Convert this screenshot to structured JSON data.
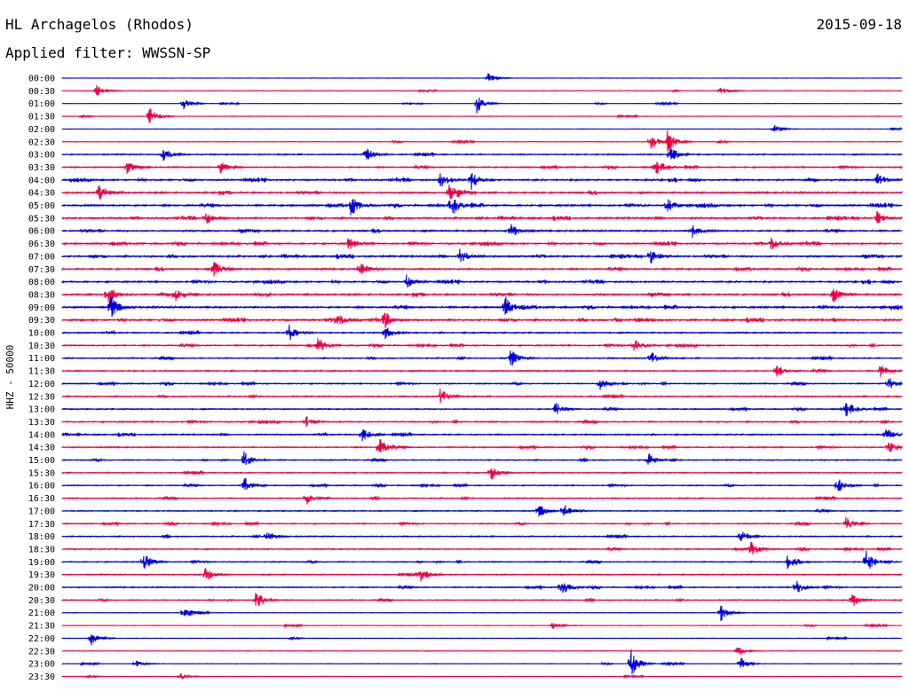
{
  "header": {
    "station": "HL Archagelos (Rhodos)",
    "date": "2015-09-18",
    "filter_label": "Applied filter:",
    "filter_name": "WWSSN-SP"
  },
  "chart_data": {
    "type": "line",
    "title": "HL Archagelos (Rhodos)",
    "ylabel": "HHZ - 50000",
    "row_labels": [
      "00:00",
      "00:30",
      "01:00",
      "01:30",
      "02:00",
      "02:30",
      "03:00",
      "03:30",
      "04:00",
      "04:30",
      "05:00",
      "05:30",
      "06:00",
      "06:30",
      "07:00",
      "07:30",
      "08:00",
      "08:30",
      "09:00",
      "09:30",
      "10:00",
      "10:30",
      "11:00",
      "11:30",
      "12:00",
      "12:30",
      "13:00",
      "13:30",
      "14:00",
      "14:30",
      "15:00",
      "15:30",
      "16:00",
      "16:30",
      "17:00",
      "17:30",
      "18:00",
      "18:30",
      "19:00",
      "19:30",
      "20:00",
      "20:30",
      "21:00",
      "21:30",
      "22:00",
      "22:30",
      "23:00",
      "23:30"
    ],
    "row_colors": [
      "#0000dd",
      "#ee0044"
    ],
    "noise_level": [
      0.12,
      0.18,
      0.12,
      0.15,
      0.15,
      0.2,
      0.5,
      0.55,
      0.7,
      0.75,
      0.8,
      0.75,
      0.7,
      0.7,
      0.75,
      0.7,
      0.7,
      0.75,
      0.8,
      0.8,
      0.55,
      0.55,
      0.5,
      0.5,
      0.5,
      0.5,
      0.5,
      0.55,
      0.55,
      0.5,
      0.45,
      0.45,
      0.45,
      0.45,
      0.45,
      0.45,
      0.45,
      0.45,
      0.45,
      0.45,
      0.5,
      0.4,
      0.2,
      0.2,
      0.2,
      0.2,
      0.2,
      0.15
    ],
    "events": [
      {
        "row": 0,
        "minute": 15.2,
        "amp": 0.7
      },
      {
        "row": 1,
        "minute": 1.2,
        "amp": 0.9
      },
      {
        "row": 1,
        "minute": 23.5,
        "amp": 0.6
      },
      {
        "row": 2,
        "minute": 4.3,
        "amp": 0.9
      },
      {
        "row": 2,
        "minute": 14.8,
        "amp": 1.3
      },
      {
        "row": 3,
        "minute": 3.1,
        "amp": 1.4
      },
      {
        "row": 4,
        "minute": 25.4,
        "amp": 0.7
      },
      {
        "row": 5,
        "minute": 21.0,
        "amp": 1.2
      },
      {
        "row": 5,
        "minute": 21.6,
        "amp": 1.6
      },
      {
        "row": 6,
        "minute": 3.6,
        "amp": 1.0
      },
      {
        "row": 6,
        "minute": 10.8,
        "amp": 1.1
      },
      {
        "row": 6,
        "minute": 21.7,
        "amp": 1.1
      },
      {
        "row": 7,
        "minute": 2.3,
        "amp": 0.9
      },
      {
        "row": 7,
        "minute": 5.6,
        "amp": 1.0
      },
      {
        "row": 7,
        "minute": 21.2,
        "amp": 1.0
      },
      {
        "row": 8,
        "minute": 13.5,
        "amp": 1.1
      },
      {
        "row": 8,
        "minute": 14.6,
        "amp": 1.3
      },
      {
        "row": 8,
        "minute": 29.1,
        "amp": 1.0
      },
      {
        "row": 9,
        "minute": 1.3,
        "amp": 1.3
      },
      {
        "row": 9,
        "minute": 13.8,
        "amp": 1.2
      },
      {
        "row": 10,
        "minute": 10.3,
        "amp": 1.5
      },
      {
        "row": 10,
        "minute": 13.9,
        "amp": 1.4
      },
      {
        "row": 10,
        "minute": 21.6,
        "amp": 1.1
      },
      {
        "row": 11,
        "minute": 5.1,
        "amp": 0.9
      },
      {
        "row": 11,
        "minute": 29.1,
        "amp": 0.9
      },
      {
        "row": 12,
        "minute": 16.0,
        "amp": 1.0
      },
      {
        "row": 12,
        "minute": 22.5,
        "amp": 0.9
      },
      {
        "row": 13,
        "minute": 10.2,
        "amp": 1.0
      },
      {
        "row": 13,
        "minute": 25.3,
        "amp": 0.9
      },
      {
        "row": 14,
        "minute": 14.2,
        "amp": 1.1
      },
      {
        "row": 14,
        "minute": 21.0,
        "amp": 1.1
      },
      {
        "row": 15,
        "minute": 5.4,
        "amp": 1.2
      },
      {
        "row": 15,
        "minute": 10.6,
        "amp": 1.1
      },
      {
        "row": 16,
        "minute": 12.3,
        "amp": 0.9
      },
      {
        "row": 17,
        "minute": 1.6,
        "amp": 1.6
      },
      {
        "row": 17,
        "minute": 4.0,
        "amp": 1.2
      },
      {
        "row": 17,
        "minute": 27.5,
        "amp": 1.1
      },
      {
        "row": 18,
        "minute": 1.7,
        "amp": 1.8
      },
      {
        "row": 18,
        "minute": 15.8,
        "amp": 1.6
      },
      {
        "row": 19,
        "minute": 9.8,
        "amp": 1.0
      },
      {
        "row": 19,
        "minute": 11.5,
        "amp": 1.0
      },
      {
        "row": 20,
        "minute": 8.1,
        "amp": 1.1
      },
      {
        "row": 20,
        "minute": 11.5,
        "amp": 1.0
      },
      {
        "row": 21,
        "minute": 9.1,
        "amp": 1.0
      },
      {
        "row": 21,
        "minute": 20.4,
        "amp": 1.0
      },
      {
        "row": 22,
        "minute": 16.0,
        "amp": 1.3
      },
      {
        "row": 22,
        "minute": 21.0,
        "amp": 1.0
      },
      {
        "row": 23,
        "minute": 25.5,
        "amp": 0.9
      },
      {
        "row": 23,
        "minute": 29.2,
        "amp": 1.0
      },
      {
        "row": 24,
        "minute": 19.2,
        "amp": 0.9
      },
      {
        "row": 24,
        "minute": 29.5,
        "amp": 0.9
      },
      {
        "row": 25,
        "minute": 13.5,
        "amp": 1.1
      },
      {
        "row": 26,
        "minute": 17.6,
        "amp": 1.0
      },
      {
        "row": 26,
        "minute": 28.0,
        "amp": 1.0
      },
      {
        "row": 27,
        "minute": 8.7,
        "amp": 0.9
      },
      {
        "row": 28,
        "minute": 10.7,
        "amp": 1.0
      },
      {
        "row": 28,
        "minute": 29.4,
        "amp": 1.0
      },
      {
        "row": 29,
        "minute": 11.3,
        "amp": 1.4
      },
      {
        "row": 29,
        "minute": 29.5,
        "amp": 1.0
      },
      {
        "row": 30,
        "minute": 6.5,
        "amp": 1.0
      },
      {
        "row": 30,
        "minute": 20.9,
        "amp": 1.0
      },
      {
        "row": 31,
        "minute": 15.3,
        "amp": 1.0
      },
      {
        "row": 32,
        "minute": 6.5,
        "amp": 1.1
      },
      {
        "row": 32,
        "minute": 27.7,
        "amp": 1.0
      },
      {
        "row": 33,
        "minute": 8.7,
        "amp": 0.9
      },
      {
        "row": 34,
        "minute": 17.0,
        "amp": 1.0
      },
      {
        "row": 34,
        "minute": 17.9,
        "amp": 1.0
      },
      {
        "row": 35,
        "minute": 28.0,
        "amp": 1.0
      },
      {
        "row": 36,
        "minute": 7.3,
        "amp": 0.9
      },
      {
        "row": 36,
        "minute": 24.2,
        "amp": 1.2
      },
      {
        "row": 37,
        "minute": 24.6,
        "amp": 1.0
      },
      {
        "row": 38,
        "minute": 2.9,
        "amp": 1.3
      },
      {
        "row": 38,
        "minute": 25.9,
        "amp": 1.0
      },
      {
        "row": 38,
        "minute": 28.7,
        "amp": 1.6
      },
      {
        "row": 39,
        "minute": 5.1,
        "amp": 1.0
      },
      {
        "row": 39,
        "minute": 12.8,
        "amp": 1.0
      },
      {
        "row": 40,
        "minute": 17.8,
        "amp": 1.3
      },
      {
        "row": 40,
        "minute": 26.2,
        "amp": 1.1
      },
      {
        "row": 41,
        "minute": 6.9,
        "amp": 1.0
      },
      {
        "row": 41,
        "minute": 28.2,
        "amp": 1.0
      },
      {
        "row": 42,
        "minute": 4.3,
        "amp": 0.9
      },
      {
        "row": 42,
        "minute": 23.5,
        "amp": 1.2
      },
      {
        "row": 43,
        "minute": 17.5,
        "amp": 0.5
      },
      {
        "row": 44,
        "minute": 1.0,
        "amp": 1.1
      },
      {
        "row": 45,
        "minute": 24.1,
        "amp": 0.8
      },
      {
        "row": 46,
        "minute": 2.6,
        "amp": 0.5
      },
      {
        "row": 46,
        "minute": 20.3,
        "amp": 2.0
      },
      {
        "row": 46,
        "minute": 24.2,
        "amp": 1.0
      },
      {
        "row": 47,
        "minute": 4.2,
        "amp": 0.5
      }
    ]
  }
}
